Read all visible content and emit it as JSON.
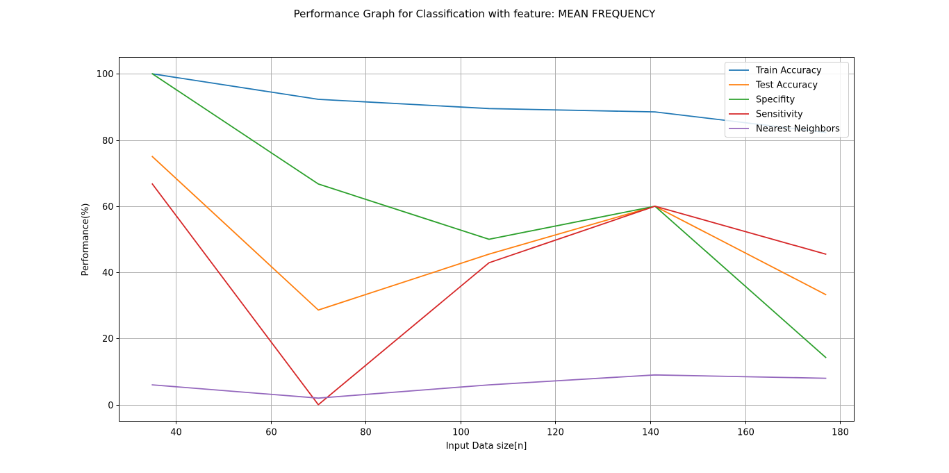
{
  "chart_data": {
    "type": "line",
    "title": "Performance Graph for Classification with feature: MEAN FREQUENCY",
    "xlabel": "Input Data size[n]",
    "ylabel": "Performance(%)",
    "xlim": [
      28,
      183
    ],
    "ylim": [
      -5,
      105
    ],
    "xticks": [
      40,
      60,
      80,
      100,
      120,
      140,
      160,
      180
    ],
    "yticks": [
      0,
      20,
      40,
      60,
      80,
      100
    ],
    "grid": true,
    "legend_position": "top-right",
    "x": [
      35,
      70,
      106,
      141,
      177
    ],
    "series": [
      {
        "name": "Train Accuracy",
        "color": "#1f77b4",
        "values": [
          100,
          92.3,
          89.5,
          88.5,
          82.3
        ]
      },
      {
        "name": "Test Accuracy",
        "color": "#ff7f0e",
        "values": [
          75,
          28.6,
          45.5,
          60,
          33.3
        ]
      },
      {
        "name": "Specifity",
        "color": "#2ca02c",
        "values": [
          100,
          66.7,
          50,
          60,
          14.3
        ]
      },
      {
        "name": "Sensitivity",
        "color": "#d62728",
        "values": [
          66.7,
          0,
          42.9,
          60,
          45.5
        ]
      },
      {
        "name": "Nearest Neighbors",
        "color": "#9467bd",
        "values": [
          6,
          2,
          6,
          9,
          8
        ]
      }
    ]
  }
}
